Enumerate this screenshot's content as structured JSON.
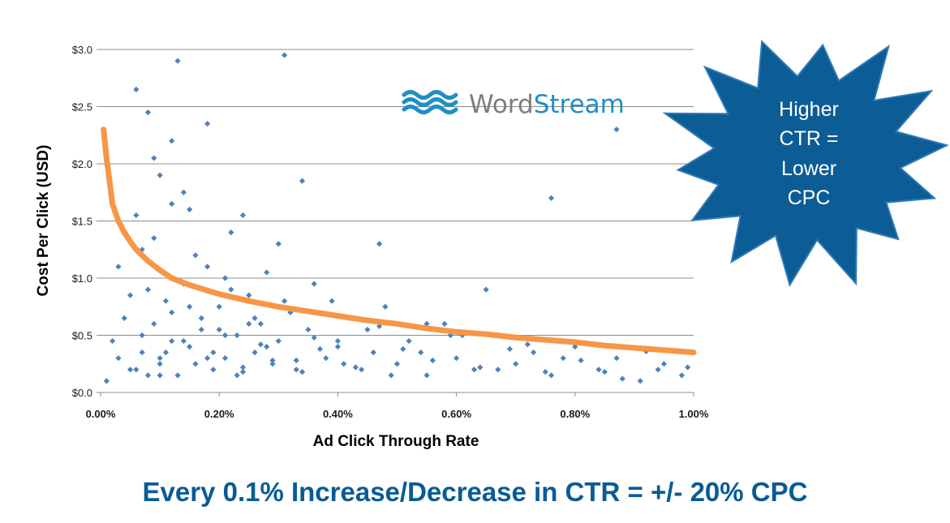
{
  "chart_data": {
    "type": "scatter",
    "xlabel": "Ad Click Through Rate",
    "ylabel": "Cost Per Click (USD)",
    "xlim": [
      0,
      1.0
    ],
    "ylim": [
      0,
      3.0
    ],
    "x_tick_labels": [
      "0.00%",
      "0.20%",
      "0.40%",
      "0.60%",
      "0.80%",
      "1.00%"
    ],
    "y_tick_labels": [
      "$0.0",
      "$0.5",
      "$1.0",
      "$1.5",
      "$2.0",
      "$2.5",
      "$3.0"
    ],
    "grid": "horizontal",
    "series": [
      {
        "type": "scatter",
        "x": [
          0.02,
          0.03,
          0.05,
          0.06,
          0.07,
          0.08,
          0.08,
          0.09,
          0.1,
          0.1,
          0.11,
          0.12,
          0.12,
          0.13,
          0.14,
          0.15,
          0.15,
          0.16,
          0.17,
          0.18,
          0.19,
          0.2,
          0.21,
          0.22,
          0.23,
          0.24,
          0.25,
          0.26,
          0.27,
          0.28,
          0.29,
          0.3,
          0.31,
          0.32,
          0.33,
          0.35,
          0.36,
          0.38,
          0.4,
          0.42,
          0.44,
          0.46,
          0.48,
          0.5,
          0.52,
          0.55,
          0.58,
          0.6,
          0.63,
          0.66,
          0.7,
          0.73,
          0.76,
          0.8,
          0.84,
          0.87,
          0.91,
          0.95,
          0.98,
          0.01,
          0.04,
          0.06,
          0.07,
          0.09,
          0.11,
          0.13,
          0.14,
          0.16,
          0.18,
          0.2,
          0.22,
          0.24,
          0.26,
          0.28,
          0.3,
          0.33,
          0.36,
          0.39,
          0.43,
          0.47,
          0.51,
          0.56,
          0.61,
          0.67,
          0.72,
          0.78,
          0.85,
          0.92,
          0.99,
          0.03,
          0.05,
          0.07,
          0.09,
          0.1,
          0.12,
          0.14,
          0.17,
          0.19,
          0.21,
          0.23,
          0.25,
          0.27,
          0.31,
          0.34,
          0.37,
          0.41,
          0.45,
          0.49,
          0.54,
          0.59,
          0.64,
          0.69,
          0.75,
          0.81,
          0.88,
          0.94,
          0.06,
          0.08,
          0.1,
          0.12,
          0.15,
          0.18,
          0.21,
          0.24,
          0.29,
          0.34,
          0.4,
          0.47,
          0.55,
          0.65,
          0.76,
          0.87
        ],
        "y": [
          0.45,
          0.3,
          0.85,
          0.2,
          1.25,
          0.15,
          2.45,
          0.6,
          0.25,
          1.9,
          0.35,
          0.7,
          2.2,
          0.15,
          0.95,
          0.4,
          1.6,
          0.25,
          0.55,
          1.1,
          0.2,
          0.75,
          0.3,
          1.4,
          0.5,
          0.18,
          0.85,
          0.35,
          0.6,
          1.05,
          0.25,
          0.45,
          2.95,
          0.7,
          0.2,
          0.55,
          0.95,
          0.3,
          0.4,
          0.65,
          0.2,
          0.35,
          0.75,
          0.25,
          0.45,
          0.15,
          0.6,
          0.3,
          0.2,
          0.5,
          0.25,
          0.35,
          0.15,
          0.4,
          0.2,
          0.3,
          0.1,
          0.25,
          0.15,
          0.1,
          0.65,
          1.55,
          0.35,
          2.05,
          0.8,
          2.9,
          0.45,
          1.2,
          0.3,
          0.55,
          0.9,
          0.22,
          0.65,
          0.4,
          1.3,
          0.28,
          0.48,
          0.8,
          0.22,
          0.58,
          0.38,
          0.28,
          0.5,
          0.2,
          0.42,
          0.3,
          0.18,
          0.36,
          0.22,
          1.1,
          0.2,
          0.5,
          1.35,
          0.15,
          0.45,
          1.75,
          0.65,
          0.35,
          1.0,
          0.15,
          0.6,
          0.42,
          0.8,
          0.18,
          0.38,
          0.25,
          0.55,
          0.15,
          0.35,
          0.5,
          0.22,
          0.38,
          0.18,
          0.28,
          0.12,
          0.2,
          2.65,
          0.9,
          0.3,
          1.65,
          0.75,
          2.35,
          0.5,
          1.55,
          0.28,
          1.85,
          0.45,
          1.3,
          0.6,
          0.9,
          1.7,
          2.3
        ]
      },
      {
        "type": "line",
        "x": [
          0.005,
          0.01,
          0.015,
          0.02,
          0.03,
          0.04,
          0.05,
          0.06,
          0.08,
          0.1,
          0.12,
          0.15,
          0.2,
          0.25,
          0.3,
          0.35,
          0.4,
          0.45,
          0.5,
          0.55,
          0.6,
          0.65,
          0.7,
          0.75,
          0.8,
          0.85,
          0.9,
          0.95,
          1.0
        ],
        "y": [
          2.3,
          2.05,
          1.85,
          1.65,
          1.5,
          1.4,
          1.32,
          1.25,
          1.15,
          1.07,
          1.0,
          0.94,
          0.86,
          0.8,
          0.75,
          0.71,
          0.67,
          0.63,
          0.6,
          0.56,
          0.53,
          0.51,
          0.48,
          0.46,
          0.44,
          0.41,
          0.39,
          0.37,
          0.35
        ]
      }
    ]
  },
  "logo": {
    "word1": "Word",
    "word2": "Stream"
  },
  "callout": {
    "lines": [
      "Higher",
      "CTR =",
      "Lower",
      "CPC"
    ]
  },
  "footer": {
    "text": "Every 0.1% Increase/Decrease  in CTR = +/- 20% CPC"
  },
  "colors": {
    "point": "#4f81bd",
    "trend": "#f79646",
    "grid": "#8c8c8c",
    "burst": "#0c5c96",
    "burst_edge": "#2f7ab8",
    "footer_text": "#0a5b94",
    "logo_blue": "#1f8fc4",
    "logo_grey": "#7d7d7d"
  }
}
